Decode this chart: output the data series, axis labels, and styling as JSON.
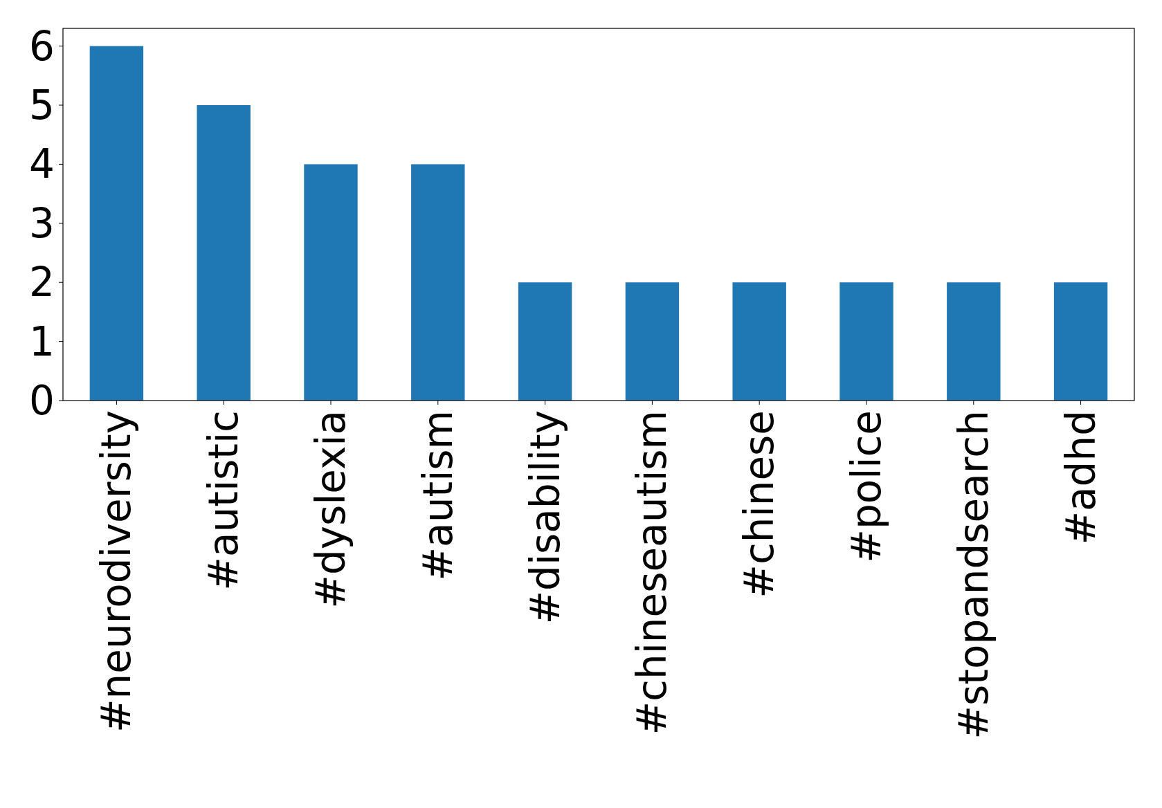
{
  "chart_data": {
    "type": "bar",
    "categories": [
      "#neurodiversity",
      "#autistic",
      "#dyslexia",
      "#autism",
      "#disability",
      "#chineseautism",
      "#chinese",
      "#police",
      "#stopandsearch",
      "#adhd"
    ],
    "values": [
      6,
      5,
      4,
      4,
      2,
      2,
      2,
      2,
      2,
      2
    ],
    "color": "#1f77b4",
    "ylim": [
      0,
      6.3
    ],
    "yticks": [
      0,
      1,
      2,
      3,
      4,
      5,
      6
    ],
    "grid": false
  }
}
